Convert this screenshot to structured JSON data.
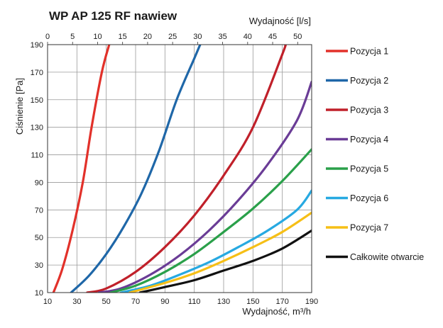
{
  "chart_data": {
    "type": "line",
    "title": "WP AP 125 RF nawiew",
    "xlabel": "Wydajność, m³/h",
    "ylabel": "Ciśnienie [Pa]",
    "x2label": "Wydajność [l/s]",
    "xlim": [
      10,
      190
    ],
    "ylim": [
      10,
      190
    ],
    "x2lim": [
      0,
      52.8
    ],
    "xticks": [
      "10",
      "30",
      "50",
      "70",
      "90",
      "110",
      "130",
      "150",
      "170",
      "190"
    ],
    "yticks": [
      "10",
      "30",
      "50",
      "70",
      "90",
      "110",
      "130",
      "150",
      "170",
      "190"
    ],
    "x2ticks": [
      "0",
      "5",
      "10",
      "15",
      "20",
      "25",
      "30",
      "35",
      "40",
      "45",
      "50"
    ],
    "grid": true,
    "legend_position": "right",
    "series": [
      {
        "name": "Pozycja 1",
        "color": "#e2312a",
        "x": [
          14,
          20,
          27,
          34,
          40,
          47,
          52
        ],
        "y": [
          10,
          27,
          55,
          90,
          130,
          170,
          190
        ]
      },
      {
        "name": "Pozycja 2",
        "color": "#1f67a8",
        "x": [
          26,
          38,
          50,
          62,
          74,
          86,
          98,
          110,
          114
        ],
        "y": [
          10,
          22,
          38,
          58,
          82,
          113,
          150,
          180,
          190
        ]
      },
      {
        "name": "Pozycja 3",
        "color": "#c0202a",
        "x": [
          37,
          50,
          70,
          90,
          110,
          130,
          150,
          170,
          172
        ],
        "y": [
          10,
          13,
          25,
          43,
          66,
          95,
          130,
          183,
          190
        ]
      },
      {
        "name": "Pozycja 4",
        "color": "#6a3c96",
        "x": [
          45,
          60,
          80,
          100,
          120,
          140,
          160,
          180,
          190
        ],
        "y": [
          10,
          13,
          23,
          37,
          55,
          77,
          103,
          135,
          163
        ]
      },
      {
        "name": "Pozycja 5",
        "color": "#2aa04a",
        "x": [
          53,
          70,
          90,
          110,
          130,
          150,
          170,
          190
        ],
        "y": [
          10,
          15,
          25,
          38,
          54,
          71,
          91,
          114
        ]
      },
      {
        "name": "Pozycja 6",
        "color": "#27a9e1",
        "x": [
          60,
          80,
          100,
          120,
          140,
          160,
          180,
          190
        ],
        "y": [
          10,
          15,
          23,
          32,
          43,
          55,
          70,
          84
        ]
      },
      {
        "name": "Pozycja 7",
        "color": "#f6bf16",
        "x": [
          66,
          90,
          110,
          130,
          150,
          170,
          190
        ],
        "y": [
          10,
          17,
          24,
          33,
          43,
          54,
          68
        ]
      },
      {
        "name": "Całkowite otwarcie",
        "color": "#111111",
        "x": [
          73,
          90,
          110,
          130,
          150,
          170,
          190
        ],
        "y": [
          10,
          14,
          19,
          26,
          33,
          42,
          55
        ]
      }
    ]
  }
}
